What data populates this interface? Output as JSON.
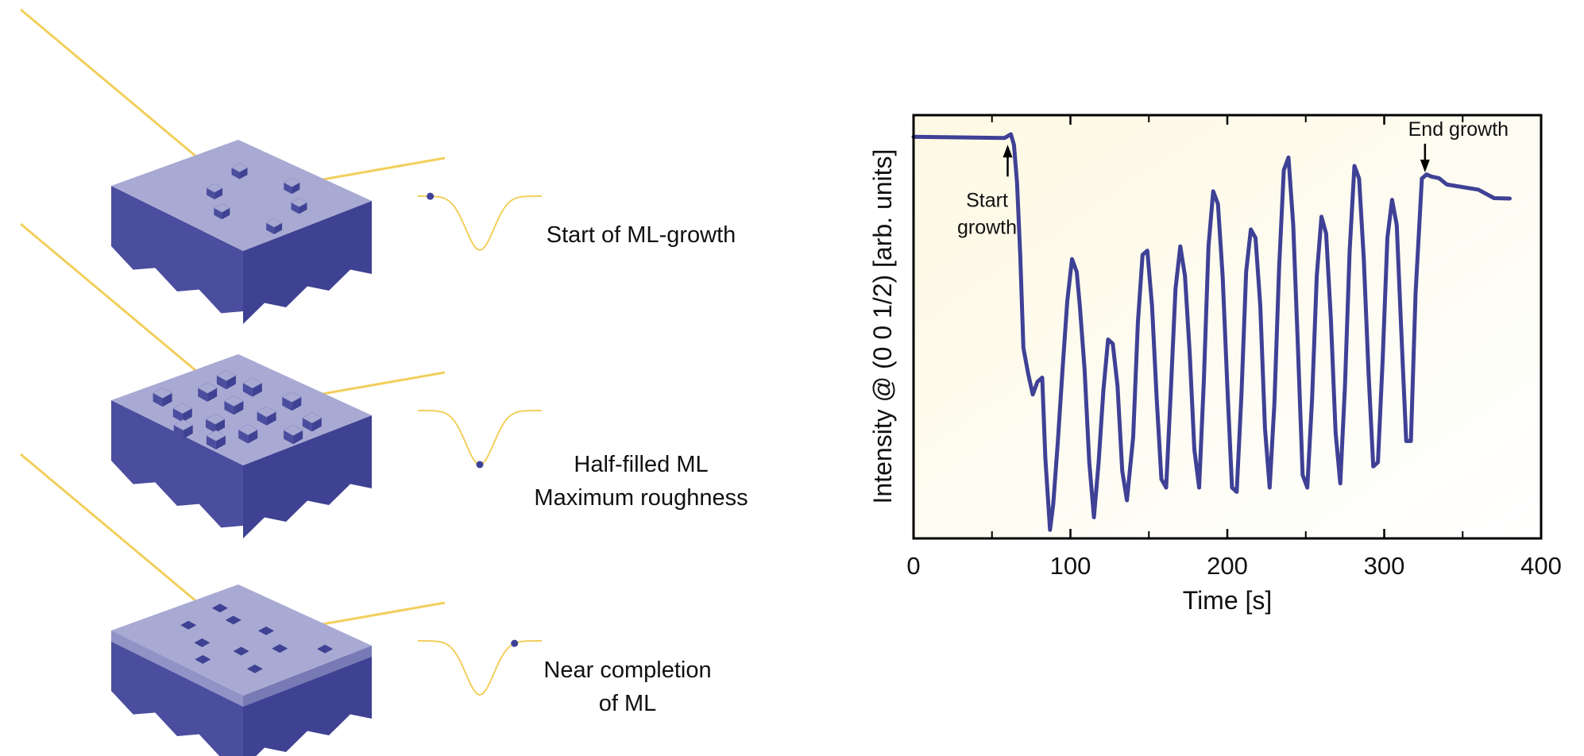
{
  "panels": [
    {
      "label_lines": [
        "Start of ML-growth"
      ],
      "dot_position": 0.1
    },
    {
      "label_lines": [
        "Half-filled ML",
        "Maximum roughness"
      ],
      "dot_position": 0.5
    },
    {
      "label_lines": [
        "Near completion",
        "of ML"
      ],
      "dot_position": 0.78
    }
  ],
  "colors": {
    "beam": "#f2cf5c",
    "block_top": "#a8aad3",
    "block_side": "#3f4192",
    "block_front": "#4b4d9e",
    "curve": "#3f4196",
    "plot_bg_from": "#fdf9e3",
    "plot_bg_to": "#ffffff"
  },
  "chart_data": {
    "type": "line",
    "xlabel": "Time [s]",
    "ylabel": "Intensity @ (0 0 1/2) [arb. units]",
    "xlim": [
      0,
      400
    ],
    "ylim": [
      0,
      1
    ],
    "xticks": [
      0,
      100,
      200,
      300,
      400
    ],
    "grid": false,
    "series": [
      {
        "x": [
          0,
          58,
          62,
          64,
          66,
          68,
          70,
          73,
          76,
          79,
          82,
          84,
          87,
          89,
          92,
          95,
          98,
          101,
          104,
          106,
          109,
          112,
          115,
          118,
          121,
          124,
          127,
          130,
          133,
          136,
          140,
          143,
          146,
          149,
          152,
          155,
          158,
          161,
          164,
          167,
          170,
          173,
          176,
          179,
          182,
          185,
          188,
          191,
          194,
          197,
          200,
          203,
          206,
          209,
          212,
          215,
          218,
          221,
          224,
          227,
          230,
          233,
          236,
          239,
          242,
          245,
          248,
          251,
          254,
          257,
          260,
          263,
          266,
          269,
          272,
          275,
          278,
          281,
          284,
          287,
          290,
          293,
          296,
          299,
          302,
          305,
          308,
          311,
          314,
          317,
          320,
          324,
          327,
          330,
          335,
          340,
          350,
          360,
          370,
          380
        ],
        "y": [
          0.955,
          0.948,
          0.955,
          0.93,
          0.84,
          0.67,
          0.45,
          0.39,
          0.34,
          0.37,
          0.38,
          0.19,
          0.02,
          0.08,
          0.23,
          0.4,
          0.56,
          0.66,
          0.63,
          0.55,
          0.4,
          0.18,
          0.05,
          0.18,
          0.35,
          0.47,
          0.46,
          0.36,
          0.16,
          0.09,
          0.24,
          0.51,
          0.67,
          0.68,
          0.55,
          0.33,
          0.14,
          0.12,
          0.35,
          0.59,
          0.69,
          0.62,
          0.44,
          0.21,
          0.12,
          0.37,
          0.69,
          0.82,
          0.79,
          0.62,
          0.36,
          0.12,
          0.11,
          0.34,
          0.63,
          0.73,
          0.71,
          0.55,
          0.26,
          0.12,
          0.32,
          0.64,
          0.87,
          0.9,
          0.74,
          0.45,
          0.15,
          0.12,
          0.33,
          0.62,
          0.76,
          0.72,
          0.52,
          0.25,
          0.13,
          0.36,
          0.68,
          0.88,
          0.85,
          0.66,
          0.39,
          0.17,
          0.18,
          0.42,
          0.71,
          0.8,
          0.74,
          0.48,
          0.23,
          0.23,
          0.58,
          0.85,
          0.86,
          0.855,
          0.845,
          0.84,
          0.83,
          0.82,
          0.81,
          0.805
        ]
      }
    ],
    "annotations": [
      {
        "text_lines": [
          "Start",
          "growth"
        ],
        "x": 60,
        "y_tip": 0.93,
        "arrow": "up"
      },
      {
        "text_lines": [
          "End growth"
        ],
        "x": 326,
        "y_tip": 0.865,
        "arrow": "down"
      }
    ]
  }
}
